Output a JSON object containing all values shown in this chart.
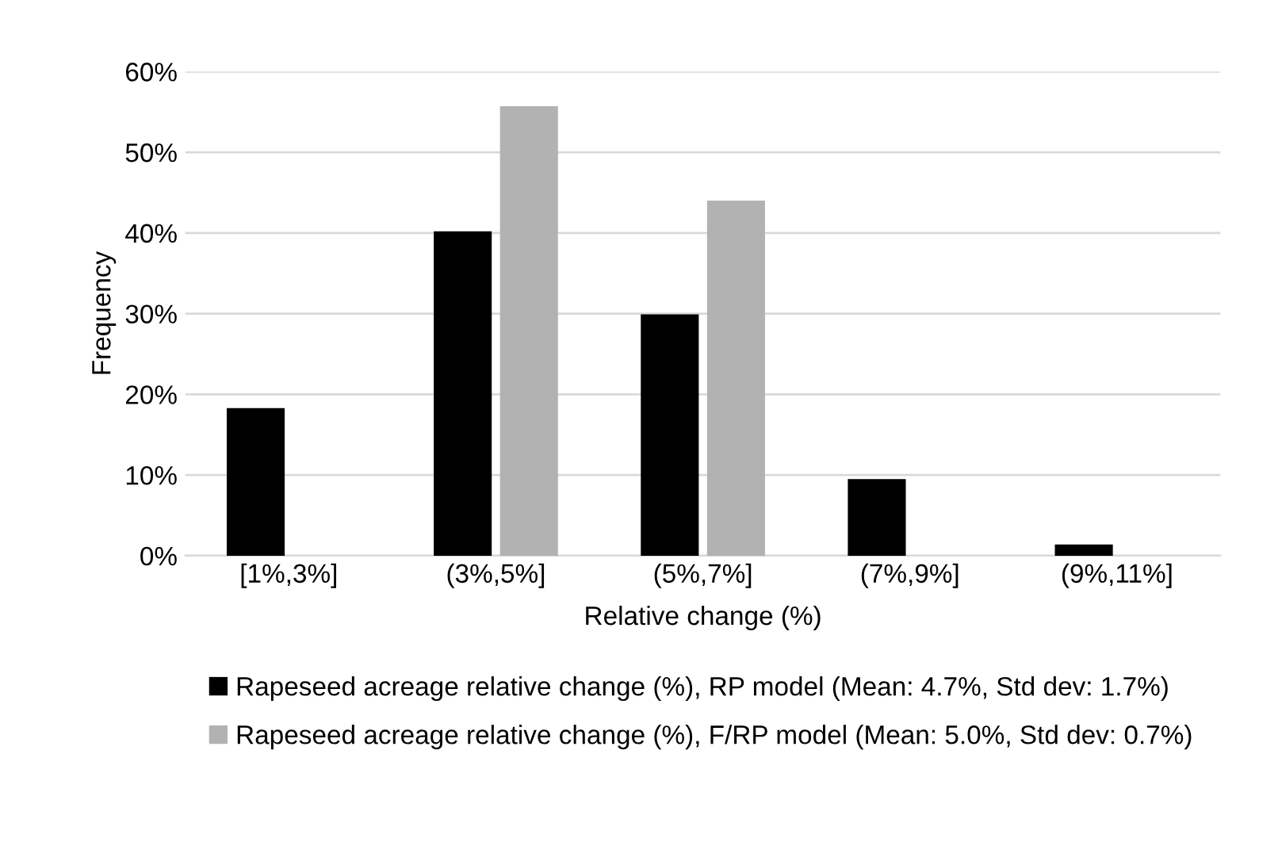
{
  "chart_data": {
    "type": "bar",
    "xlabel": "Relative change (%)",
    "ylabel": "Frequency",
    "categories": [
      "[1%,3%]",
      "(3%,5%]",
      "(5%,7%]",
      "(7%,9%]",
      "(9%,11%]"
    ],
    "series": [
      {
        "name": "Rapeseed acreage relative change (%), RP model (Mean: 4.7%, Std dev: 1.7%)",
        "color": "#000000",
        "values": [
          18.3,
          40.2,
          29.9,
          9.5,
          1.4
        ]
      },
      {
        "name": "Rapeseed acreage relative change (%), F/RP model (Mean: 5.0%, Std dev: 0.7%)",
        "color": "#b2b2b2",
        "values": [
          0,
          55.7,
          44.0,
          0,
          0
        ]
      }
    ],
    "ylim": [
      0,
      60
    ],
    "yticks": [
      {
        "value": 0,
        "label": "0%"
      },
      {
        "value": 10,
        "label": "10%"
      },
      {
        "value": 20,
        "label": "20%"
      },
      {
        "value": 30,
        "label": "30%"
      },
      {
        "value": 40,
        "label": "40%"
      },
      {
        "value": 50,
        "label": "50%"
      },
      {
        "value": 60,
        "label": "60%"
      }
    ],
    "grid": "y",
    "legend": "bottom"
  }
}
